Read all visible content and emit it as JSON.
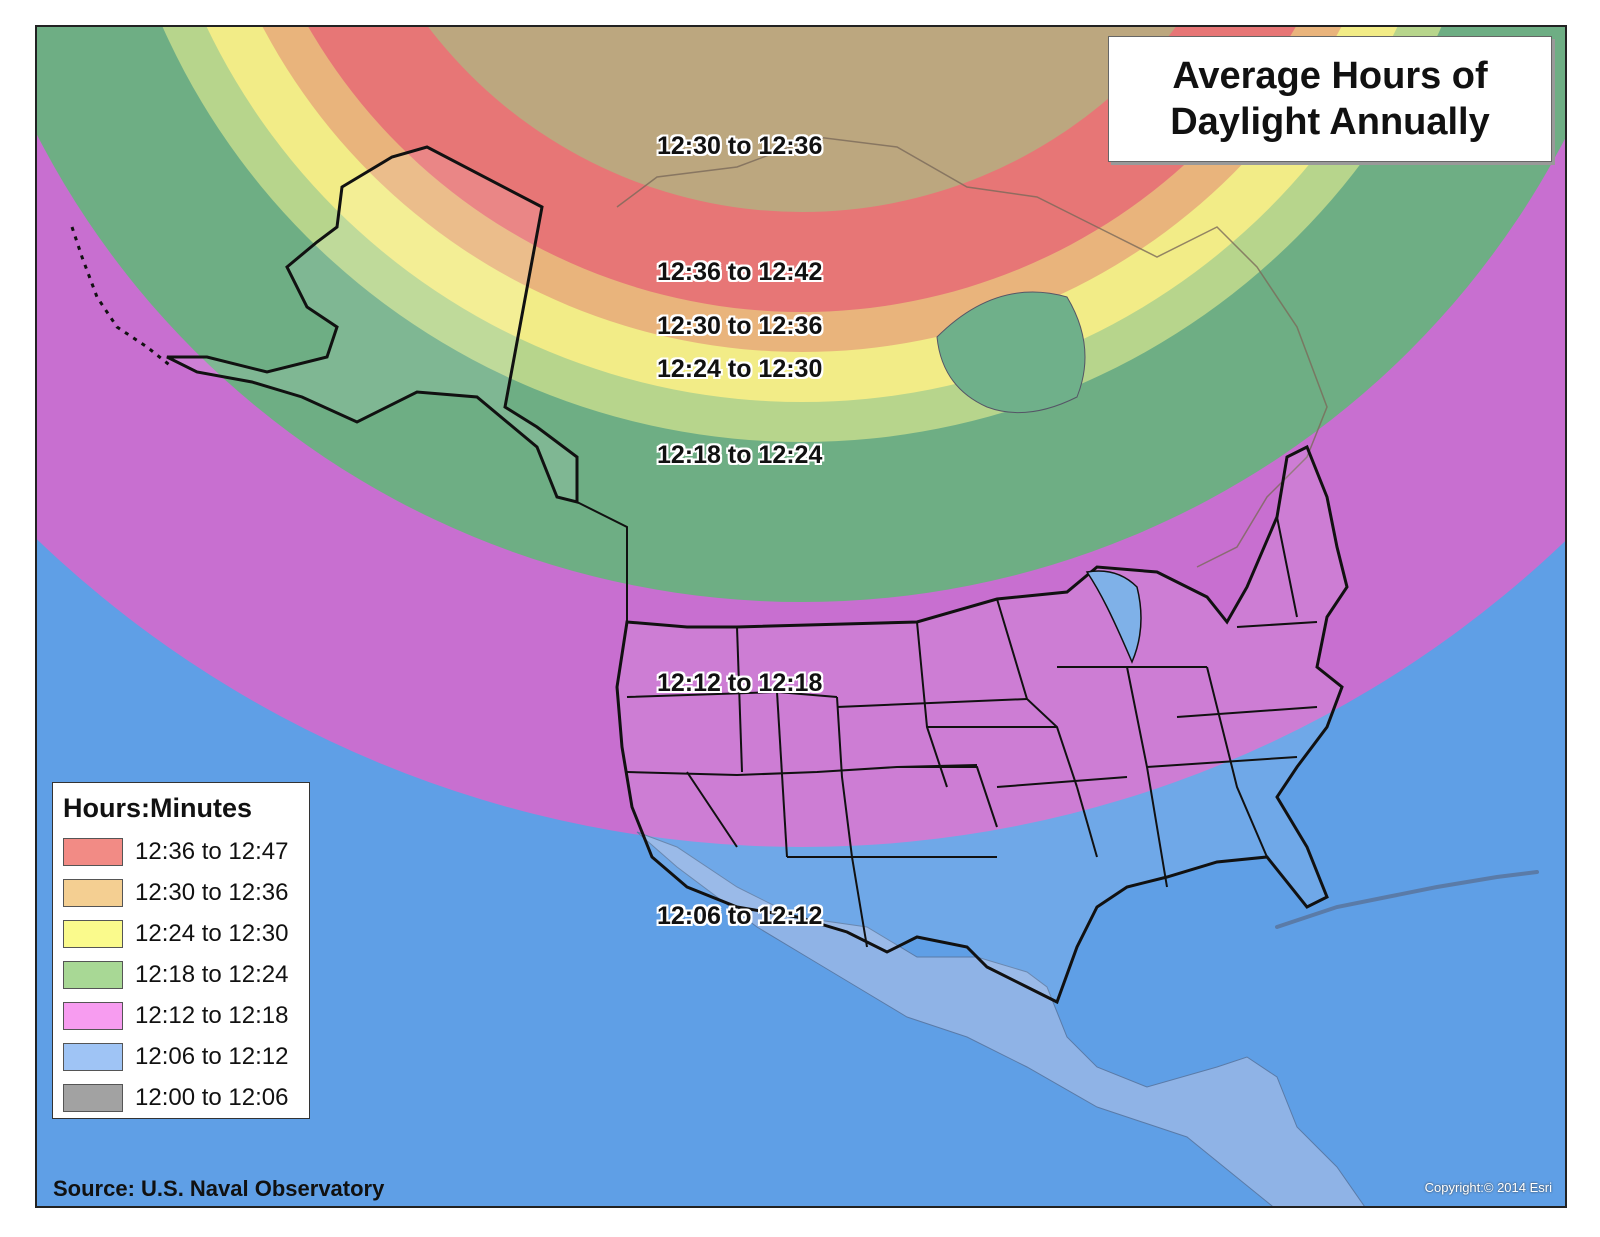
{
  "title": {
    "line1": "Average Hours of",
    "line2": "Daylight Annually"
  },
  "zone_labels": [
    "12:30 to 12:36",
    "12:36 to 12:42",
    "12:30 to 12:36",
    "12:24 to 12:30",
    "12:18 to 12:24",
    "12:12 to 12:18",
    "12:06 to 12:12"
  ],
  "legend": {
    "title": "Hours:Minutes",
    "items": [
      {
        "label": "12:36 to 12:47",
        "color": "#f28b85"
      },
      {
        "label": "12:30 to 12:36",
        "color": "#f4cf92"
      },
      {
        "label": "12:24 to 12:30",
        "color": "#fafa8c"
      },
      {
        "label": "12:18 to 12:24",
        "color": "#a8d895"
      },
      {
        "label": "12:12 to 12:18",
        "color": "#f79cf0"
      },
      {
        "label": "12:06 to 12:12",
        "color": "#9fc4f5"
      },
      {
        "label": "12:00 to 12:06",
        "color": "#a2a2a2"
      }
    ]
  },
  "source": "Source: U.S. Naval Observatory",
  "copyright": "Copyright:© 2014 Esri",
  "colors": {
    "ocean": "#5f9fe6",
    "band_pink": "#c86fd0",
    "band_green": "#6eae84",
    "band_lightgreen": "#c6d98a",
    "band_yellow": "#f2ec87",
    "band_orange": "#e9b47c",
    "band_red": "#e77676",
    "band_tan": "#bca77f"
  }
}
